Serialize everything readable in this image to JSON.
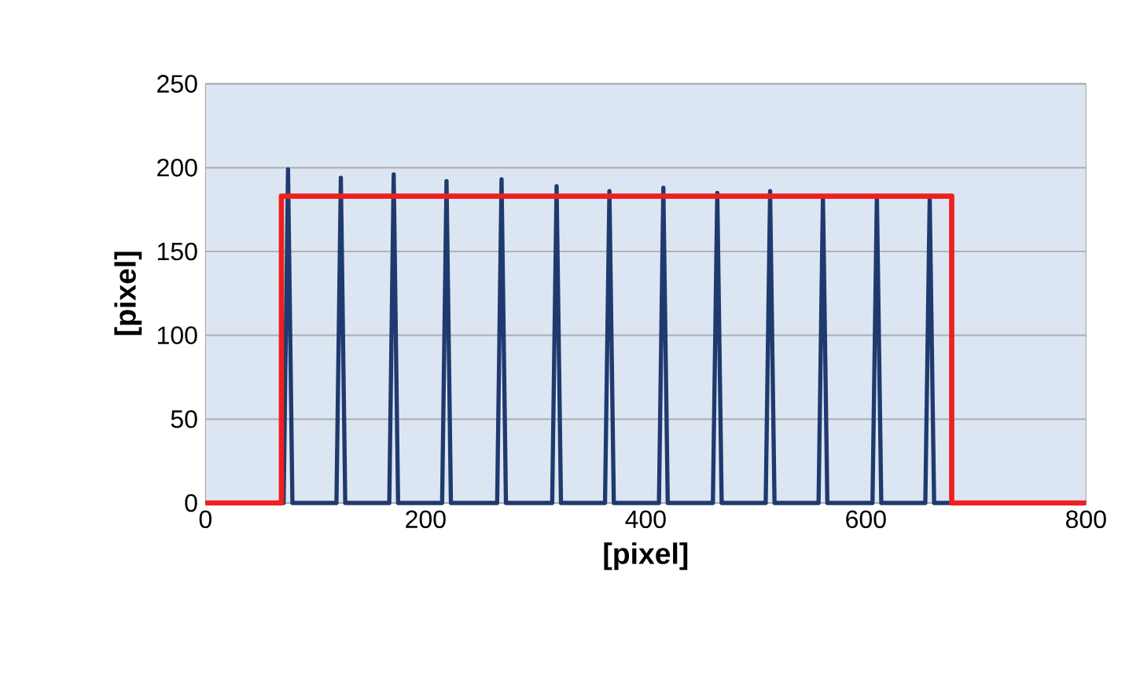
{
  "chart_data": {
    "type": "line",
    "xlabel": "[pixel]",
    "ylabel": "[pixel]",
    "xlim": [
      0,
      800
    ],
    "ylim": [
      0,
      250
    ],
    "xticks": [
      0,
      200,
      400,
      600,
      800
    ],
    "yticks": [
      0,
      50,
      100,
      150,
      200,
      250
    ],
    "grid": "y",
    "marker": "none",
    "line_style": "solid",
    "series": [
      {
        "color": "#1f3a6e",
        "x": [
          0,
          71,
          75,
          79,
          119,
          123,
          127,
          167,
          171,
          175,
          215,
          219,
          223,
          265,
          269,
          273,
          315,
          319,
          323,
          363,
          367,
          371,
          412,
          416,
          420,
          461,
          465,
          469,
          509,
          513,
          517,
          557,
          561,
          565,
          606,
          610,
          614,
          654,
          658,
          662,
          800
        ],
        "values": [
          0,
          0,
          199,
          0,
          0,
          194,
          0,
          0,
          196,
          0,
          0,
          192,
          0,
          0,
          193,
          0,
          0,
          189,
          0,
          0,
          186,
          0,
          0,
          188,
          0,
          0,
          185,
          0,
          0,
          186,
          0,
          0,
          183,
          0,
          0,
          183,
          0,
          0,
          182,
          0,
          0
        ]
      },
      {
        "color": "#ee2020",
        "x": [
          0,
          69,
          69,
          678,
          678,
          800
        ],
        "values": [
          0,
          0,
          183,
          183,
          0,
          0
        ]
      }
    ]
  }
}
